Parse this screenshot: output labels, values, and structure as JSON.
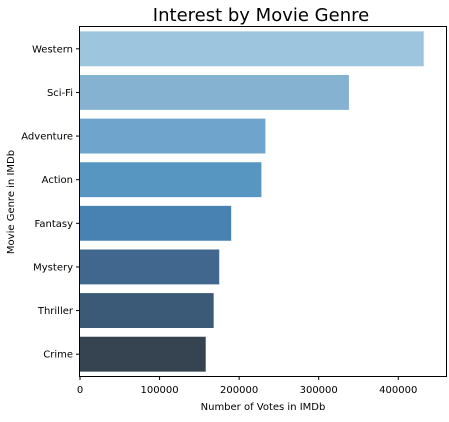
{
  "chart_data": {
    "type": "bar",
    "orientation": "horizontal",
    "title": "Interest by Movie Genre",
    "xlabel": "Number of Votes in IMDb",
    "ylabel": "Movie Genre in IMDb",
    "categories": [
      "Western",
      "Sci-Fi",
      "Adventure",
      "Action",
      "Fantasy",
      "Mystery",
      "Thriller",
      "Crime"
    ],
    "values": [
      432000,
      338000,
      233000,
      228000,
      190000,
      175000,
      168000,
      158000
    ],
    "bar_colors": [
      "#9ec5de",
      "#86b2d2",
      "#6fa5cd",
      "#5896c2",
      "#4882b3",
      "#42678f",
      "#3a5a78",
      "#364350"
    ],
    "xlim": [
      0,
      460000
    ],
    "xticks": [
      0,
      100000,
      200000,
      300000,
      400000
    ],
    "xtick_labels": [
      "0",
      "100000",
      "200000",
      "300000",
      "400000"
    ],
    "grid": false,
    "legend": "none"
  }
}
